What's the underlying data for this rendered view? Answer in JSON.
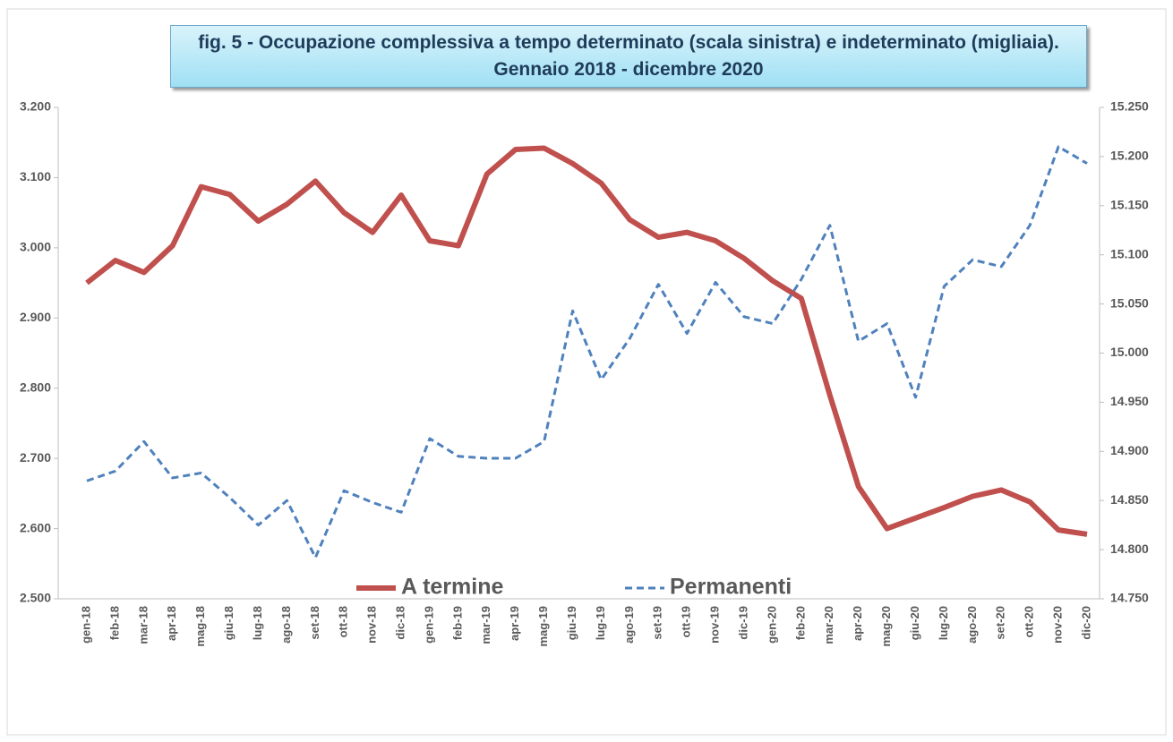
{
  "chart_data": {
    "type": "line",
    "title": "fig. 5 - Occupazione complessiva a tempo determinato (scala sinistra) e indeterminato (migliaia). Gennaio 2018 - dicembre 2020",
    "categories": [
      "gen-18",
      "feb-18",
      "mar-18",
      "apr-18",
      "mag-18",
      "giu-18",
      "lug-18",
      "ago-18",
      "set-18",
      "ott-18",
      "nov-18",
      "dic-18",
      "gen-19",
      "feb-19",
      "mar-19",
      "apr-19",
      "mag-19",
      "giu-19",
      "lug-19",
      "ago-19",
      "set-19",
      "ott-19",
      "nov-19",
      "dic-19",
      "gen-20",
      "feb-20",
      "mar-20",
      "apr-20",
      "mag-20",
      "giu-20",
      "lug-20",
      "ago-20",
      "set-20",
      "ott-20",
      "nov-20",
      "dic-20"
    ],
    "series": [
      {
        "name": "A termine",
        "color": "#c0504d",
        "axis": "y",
        "values": [
          2950,
          2982,
          2965,
          3003,
          3087,
          3076,
          3038,
          3062,
          3095,
          3050,
          3022,
          3075,
          3010,
          3003,
          3105,
          3140,
          3142,
          3120,
          3092,
          3040,
          3015,
          3022,
          3010,
          2985,
          2953,
          2928,
          2790,
          2660,
          2600,
          2615,
          2630,
          2646,
          2655,
          2638,
          2598,
          2592
        ]
      },
      {
        "name": "Permanenti",
        "color": "#4f81bd",
        "axis": "y2",
        "dashed": true,
        "values": [
          14870,
          14880,
          14910,
          14873,
          14878,
          14853,
          14825,
          14850,
          14792,
          14860,
          14848,
          14838,
          14913,
          14895,
          14893,
          14893,
          14910,
          15043,
          14973,
          15015,
          15070,
          15020,
          15072,
          15037,
          15030,
          15075,
          15130,
          15012,
          15030,
          14955,
          15068,
          15095,
          15088,
          15130,
          15210,
          15193
        ]
      }
    ],
    "ylim": [
      2500,
      3200
    ],
    "yticks": [
      {
        "value": 2500,
        "label": "2.500"
      },
      {
        "value": 2600,
        "label": "2.600"
      },
      {
        "value": 2700,
        "label": "2.700"
      },
      {
        "value": 2800,
        "label": "2.800"
      },
      {
        "value": 2900,
        "label": "2.900"
      },
      {
        "value": 3000,
        "label": "3.000"
      },
      {
        "value": 3100,
        "label": "3.100"
      },
      {
        "value": 3200,
        "label": "3.200"
      }
    ],
    "y2lim": [
      14750,
      15250
    ],
    "y2ticks": [
      {
        "value": 14750,
        "label": "14.750"
      },
      {
        "value": 14800,
        "label": "14.800"
      },
      {
        "value": 14850,
        "label": "14.850"
      },
      {
        "value": 14900,
        "label": "14.900"
      },
      {
        "value": 14950,
        "label": "14.950"
      },
      {
        "value": 15000,
        "label": "15.000"
      },
      {
        "value": 15050,
        "label": "15.050"
      },
      {
        "value": 15100,
        "label": "15.100"
      },
      {
        "value": 15150,
        "label": "15.150"
      },
      {
        "value": 15200,
        "label": "15.200"
      },
      {
        "value": 15250,
        "label": "15.250"
      }
    ],
    "grid": false
  }
}
